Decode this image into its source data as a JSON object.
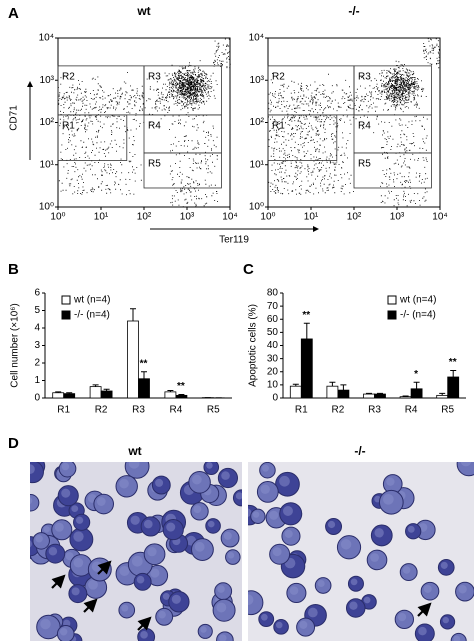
{
  "figure": {
    "panel_labels": [
      "A",
      "B",
      "C",
      "D"
    ]
  },
  "flow_cytometry": {
    "type": "scatter",
    "panels": [
      {
        "title": "wt"
      },
      {
        "title": "-/-"
      }
    ],
    "x_label": "Ter119",
    "y_label": "CD71",
    "log_scale": true,
    "xlim": [
      1,
      10000
    ],
    "ylim": [
      1,
      10000
    ],
    "xticks": [
      {
        "value": 1,
        "label": "10⁰"
      },
      {
        "value": 10,
        "label": "10¹"
      },
      {
        "value": 100,
        "label": "10²"
      },
      {
        "value": 1000,
        "label": "10³"
      },
      {
        "value": 10000,
        "label": "10⁴"
      }
    ],
    "yticks": [
      {
        "value": 1,
        "label": "10⁰"
      },
      {
        "value": 10,
        "label": "10¹"
      },
      {
        "value": 100,
        "label": "10²"
      },
      {
        "value": 1000,
        "label": "10³"
      },
      {
        "value": 10000,
        "label": "10⁴"
      }
    ],
    "gates": [
      "R1",
      "R2",
      "R3",
      "R4",
      "R5"
    ]
  },
  "chart_data": [
    {
      "type": "bar",
      "y_label": "Cell number (×10⁶)",
      "categories": [
        "R1",
        "R2",
        "R3",
        "R4",
        "R5"
      ],
      "ylim": [
        0,
        6
      ],
      "yticks": [
        0,
        1,
        2,
        3,
        4,
        5,
        6
      ],
      "legend": "top-left",
      "series": [
        {
          "name": "wt (n=4)",
          "color": "#ffffff",
          "values": [
            0.3,
            0.65,
            4.4,
            0.35,
            0.02
          ],
          "errors": [
            0.05,
            0.1,
            0.7,
            0.08,
            0
          ]
        },
        {
          "name": "-/- (n=4)",
          "color": "#000000",
          "values": [
            0.25,
            0.4,
            1.1,
            0.15,
            0.01
          ],
          "errors": [
            0.05,
            0.1,
            0.4,
            0.05,
            0
          ]
        }
      ],
      "annotations": [
        {
          "category": "R3",
          "text": "**"
        },
        {
          "category": "R4",
          "text": "**"
        }
      ]
    },
    {
      "type": "bar",
      "y_label": "Apoptotic cells (%)",
      "categories": [
        "R1",
        "R2",
        "R3",
        "R4",
        "R5"
      ],
      "ylim": [
        0,
        80
      ],
      "yticks": [
        0,
        10,
        20,
        30,
        40,
        50,
        60,
        70,
        80
      ],
      "legend": "top-right",
      "series": [
        {
          "name": "wt (n=4)",
          "color": "#ffffff",
          "values": [
            9,
            9,
            3,
            1,
            2
          ],
          "errors": [
            1.5,
            3,
            0.5,
            0.5,
            1.5
          ]
        },
        {
          "name": "-/- (n=4)",
          "color": "#000000",
          "values": [
            45,
            6,
            3,
            7,
            16
          ],
          "errors": [
            12,
            4,
            0.5,
            5,
            5
          ]
        }
      ],
      "annotations": [
        {
          "category": "R1",
          "text": "**"
        },
        {
          "category": "R4",
          "text": "*"
        },
        {
          "category": "R5",
          "text": "**"
        }
      ]
    }
  ],
  "micrographs": {
    "panels": [
      {
        "title": "wt"
      },
      {
        "title": "-/-"
      }
    ]
  }
}
